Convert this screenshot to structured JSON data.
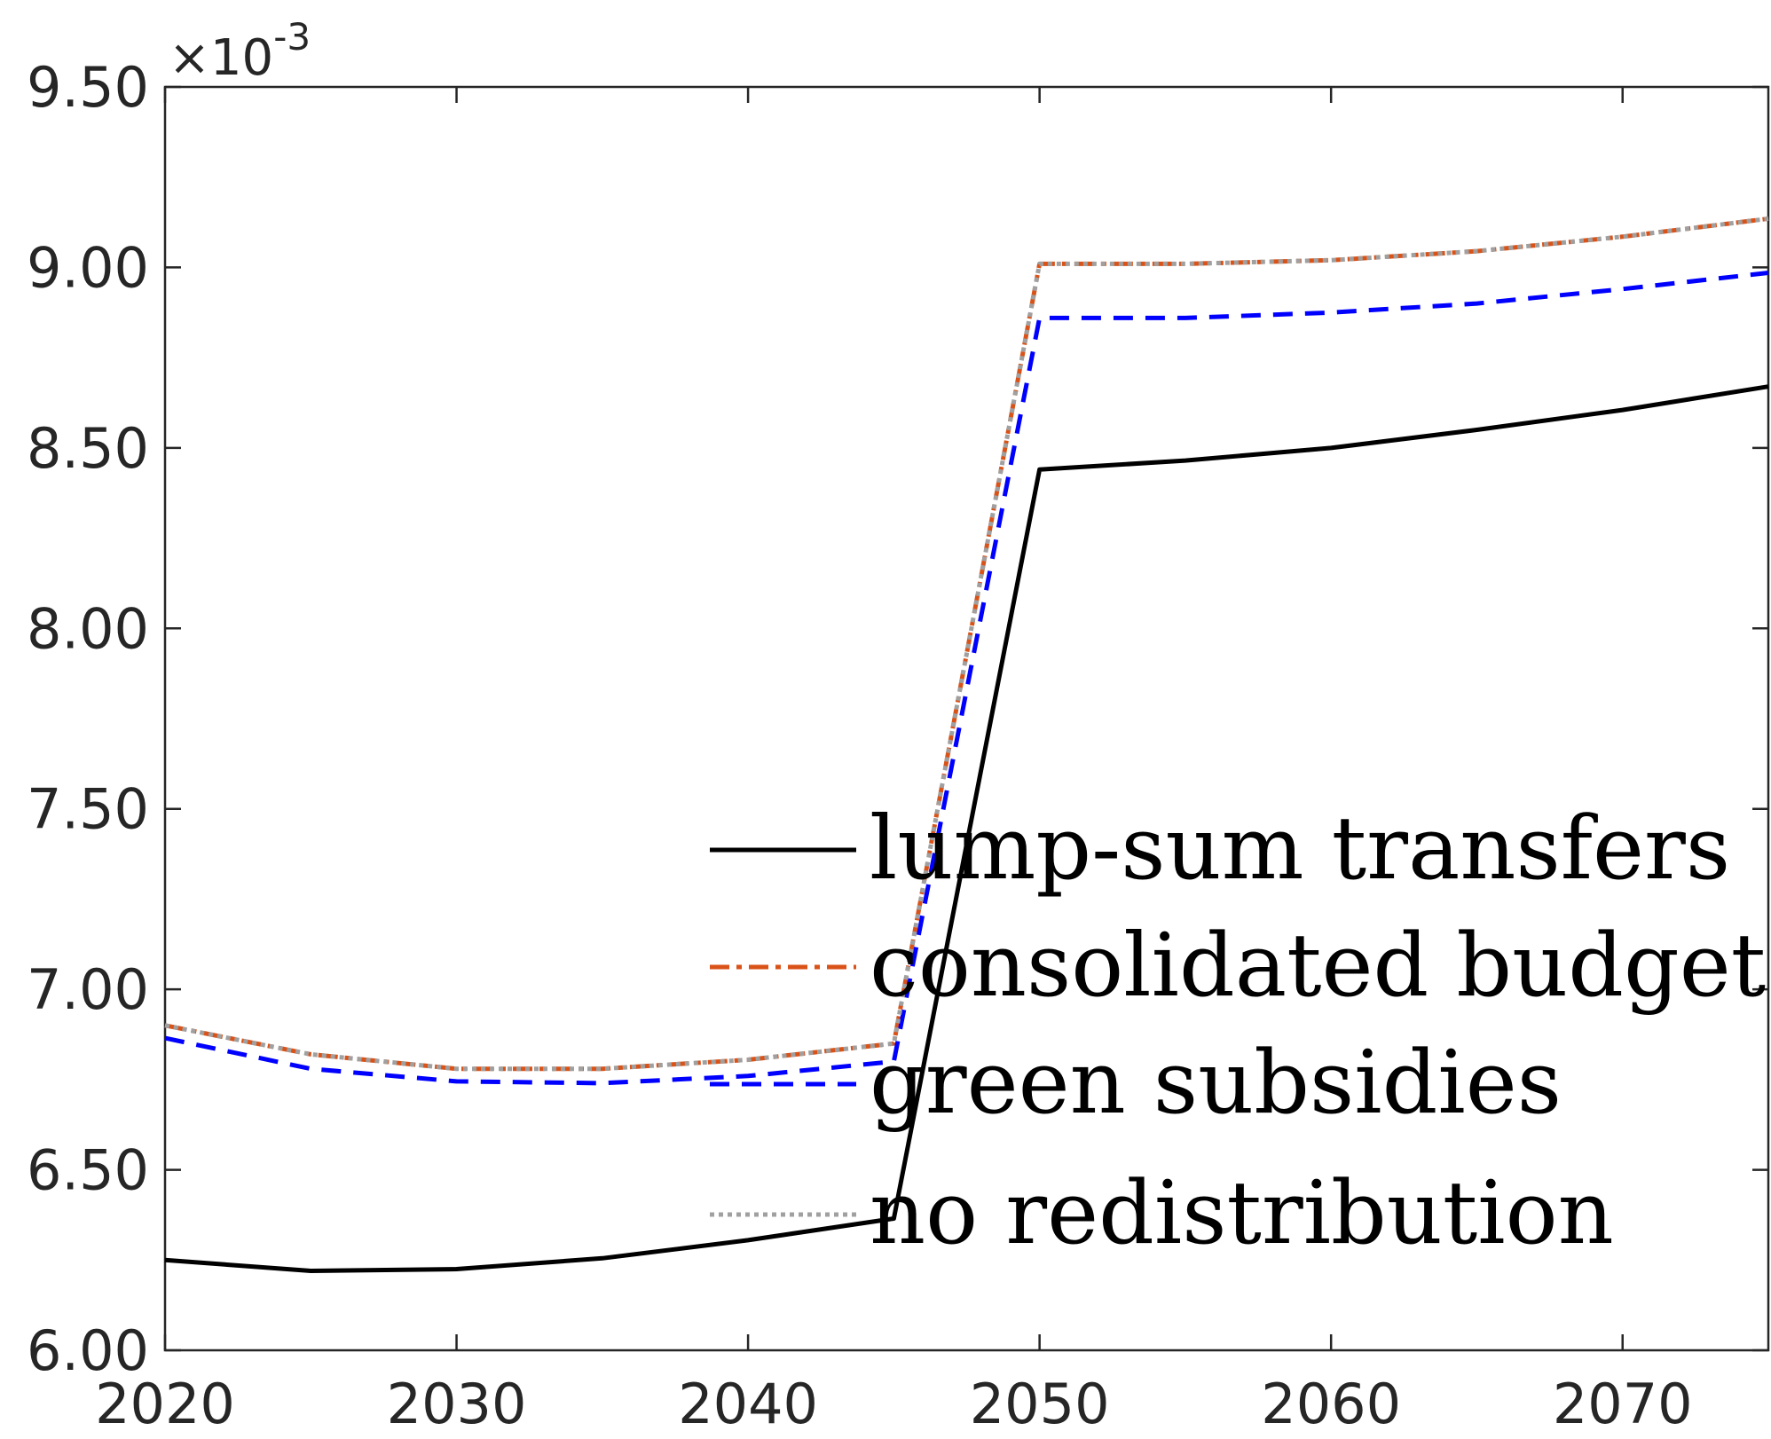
{
  "chart_data": {
    "type": "line",
    "title": "",
    "xlabel": "",
    "ylabel": "",
    "xlim": [
      2020,
      2075
    ],
    "ylim": [
      6.0,
      9.5
    ],
    "y_multiplier": "×10",
    "y_exponent": "-3",
    "x_ticks": [
      "2020",
      "2030",
      "2040",
      "2050",
      "2060",
      "2070"
    ],
    "y_ticks": [
      "6.00",
      "6.50",
      "7.00",
      "7.50",
      "8.00",
      "8.50",
      "9.00",
      "9.50"
    ],
    "grid": false,
    "legend_position": "bottom-right",
    "x": [
      2020,
      2025,
      2030,
      2035,
      2040,
      2045,
      2050,
      2055,
      2060,
      2065,
      2070,
      2075
    ],
    "series": [
      {
        "name": "lump-sum transfers",
        "color": "#000000",
        "style": "solid",
        "values": [
          6.25,
          6.22,
          6.225,
          6.255,
          6.305,
          6.365,
          8.44,
          8.465,
          8.5,
          8.55,
          8.605,
          8.67
        ]
      },
      {
        "name": "consolidated budget",
        "color": "#d95319",
        "style": "dashdot",
        "values": [
          6.9,
          6.82,
          6.78,
          6.78,
          6.805,
          6.85,
          9.01,
          9.01,
          9.02,
          9.045,
          9.085,
          9.135
        ]
      },
      {
        "name": "green subsidies",
        "color": "#0000ff",
        "style": "dashed",
        "values": [
          6.865,
          6.78,
          6.745,
          6.74,
          6.76,
          6.8,
          8.86,
          8.86,
          8.875,
          8.9,
          8.94,
          8.985
        ]
      },
      {
        "name": "no redistribution",
        "color": "#a0a0a0",
        "style": "dotted",
        "values": [
          6.9,
          6.82,
          6.78,
          6.78,
          6.805,
          6.85,
          9.01,
          9.01,
          9.02,
          9.045,
          9.085,
          9.135
        ]
      }
    ]
  }
}
